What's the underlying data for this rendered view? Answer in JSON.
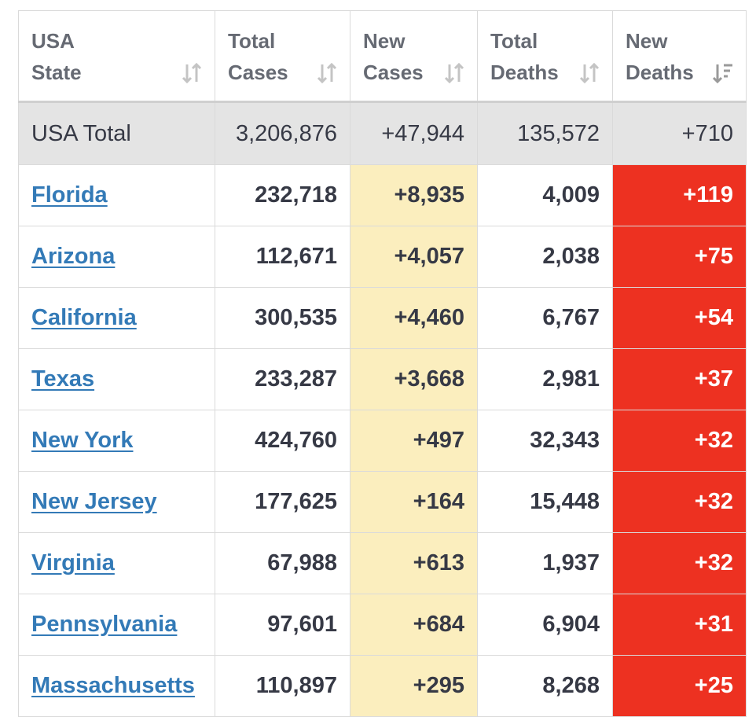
{
  "headers": [
    {
      "line1": "USA",
      "line2": "State",
      "sort_icon": "sort-both-icon"
    },
    {
      "line1": "Total",
      "line2": "Cases",
      "sort_icon": "sort-both-icon"
    },
    {
      "line1": "New",
      "line2": "Cases",
      "sort_icon": "sort-both-icon"
    },
    {
      "line1": "Total",
      "line2": "Deaths",
      "sort_icon": "sort-both-icon"
    },
    {
      "line1": "New",
      "line2": "Deaths",
      "sort_icon": "sort-descending-icon"
    }
  ],
  "total": {
    "state": "USA Total",
    "total_cases": "3,206,876",
    "new_cases": "+47,944",
    "total_deaths": "135,572",
    "new_deaths": "+710"
  },
  "rows": [
    {
      "state": "Florida",
      "total_cases": "232,718",
      "new_cases": "+8,935",
      "total_deaths": "4,009",
      "new_deaths": "+119"
    },
    {
      "state": "Arizona",
      "total_cases": "112,671",
      "new_cases": "+4,057",
      "total_deaths": "2,038",
      "new_deaths": "+75"
    },
    {
      "state": "California",
      "total_cases": "300,535",
      "new_cases": "+4,460",
      "total_deaths": "6,767",
      "new_deaths": "+54"
    },
    {
      "state": "Texas",
      "total_cases": "233,287",
      "new_cases": "+3,668",
      "total_deaths": "2,981",
      "new_deaths": "+37"
    },
    {
      "state": "New York",
      "total_cases": "424,760",
      "new_cases": "+497",
      "total_deaths": "32,343",
      "new_deaths": "+32"
    },
    {
      "state": "New Jersey",
      "total_cases": "177,625",
      "new_cases": "+164",
      "total_deaths": "15,448",
      "new_deaths": "+32"
    },
    {
      "state": "Virginia",
      "total_cases": "67,988",
      "new_cases": "+613",
      "total_deaths": "1,937",
      "new_deaths": "+32"
    },
    {
      "state": "Pennsylvania",
      "total_cases": "97,601",
      "new_cases": "+684",
      "total_deaths": "6,904",
      "new_deaths": "+31"
    },
    {
      "state": "Massachusetts",
      "total_cases": "110,897",
      "new_cases": "+295",
      "total_deaths": "8,268",
      "new_deaths": "+25"
    }
  ],
  "colors": {
    "link": "#337ab7",
    "new_cases_bg": "#fbeebe",
    "new_deaths_bg": "#ed3121",
    "total_row_bg": "#e4e4e4",
    "header_text": "#666a73",
    "body_text": "#363945"
  }
}
